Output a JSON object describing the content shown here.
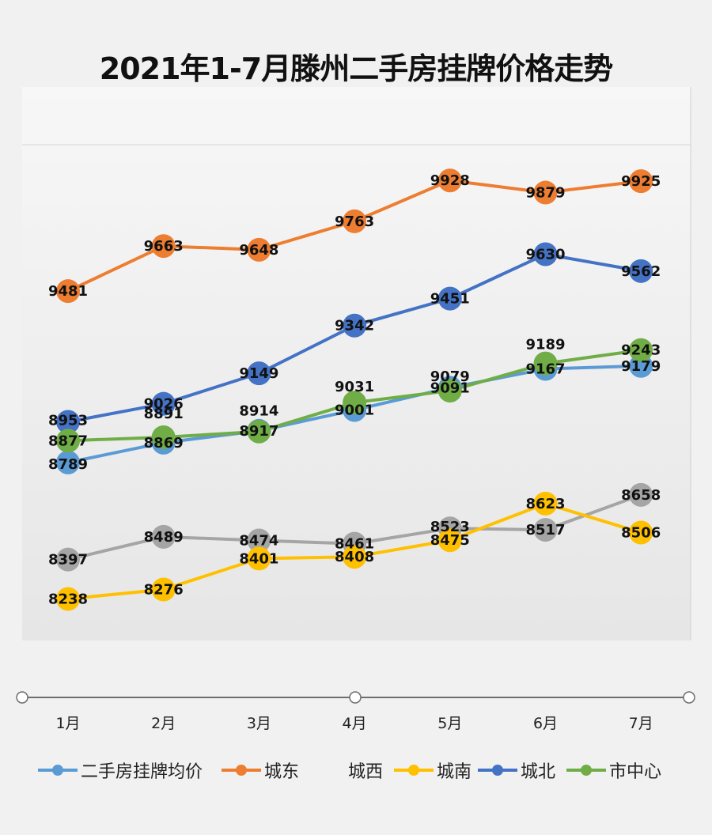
{
  "chart_data": {
    "type": "line",
    "title": "2021年1-7月滕州二手房挂牌价格走势",
    "categories": [
      "1月",
      "2月",
      "3月",
      "4月",
      "5月",
      "6月",
      "7月"
    ],
    "series": [
      {
        "name": "二手房挂牌均价",
        "color": "#5b9bd5",
        "values": [
          8789,
          8869,
          8917,
          9001,
          9091,
          9167,
          9179
        ]
      },
      {
        "name": "城东",
        "color": "#ed7d31",
        "values": [
          9481,
          9663,
          9648,
          9763,
          9928,
          9879,
          9925
        ]
      },
      {
        "name": "城西",
        "color": "#a5a5a5",
        "values": [
          8397,
          8489,
          8474,
          8461,
          8523,
          8517,
          8658
        ]
      },
      {
        "name": "城南",
        "color": "#ffc000",
        "values": [
          8238,
          8276,
          8401,
          8408,
          8475,
          8623,
          8506
        ]
      },
      {
        "name": "城北",
        "color": "#4472c4",
        "values": [
          8953,
          9026,
          9149,
          9342,
          9451,
          9630,
          9562
        ]
      },
      {
        "name": "市中心",
        "color": "#70ad47",
        "values": [
          8877,
          8891,
          8914,
          9031,
          9079,
          9189,
          9243
        ]
      }
    ],
    "series_order": [
      "城北",
      "城东",
      "城西",
      "城南",
      "二手房挂牌均价",
      "市中心"
    ],
    "ylim": [
      8150,
      10050
    ],
    "grid": false,
    "legend_position": "bottom",
    "data_labels": true
  }
}
